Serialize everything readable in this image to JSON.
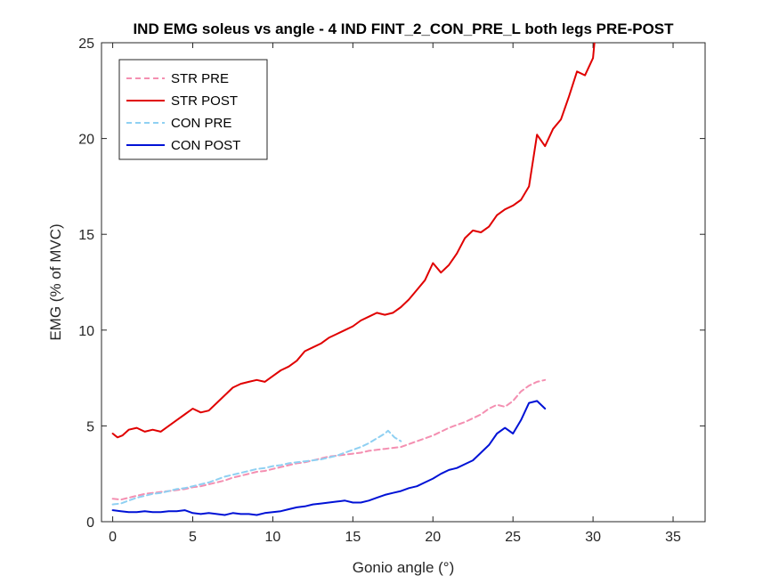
{
  "chart_data": {
    "type": "line",
    "title": "IND EMG soleus vs angle - 4 IND FINT_2_CON_PRE_L both legs PRE-POST",
    "xlabel": "Gonio angle (°)",
    "ylabel": "EMG (% of MVC)",
    "xlim": [
      -0.7,
      37
    ],
    "ylim": [
      0,
      25
    ],
    "xticks": [
      0,
      5,
      10,
      15,
      20,
      25,
      30,
      35
    ],
    "yticks": [
      0,
      5,
      10,
      15,
      20,
      25
    ],
    "grid": false,
    "legend_position": "top-left",
    "series": [
      {
        "name": "STR PRE",
        "color": "#F48FB1",
        "style": "dashed",
        "x": [
          0,
          0.5,
          1,
          1.5,
          2,
          2.5,
          3,
          3.5,
          4,
          4.5,
          5,
          5.5,
          6,
          6.5,
          7,
          7.5,
          8,
          8.5,
          9,
          9.5,
          10,
          10.5,
          11,
          11.5,
          12,
          12.5,
          13,
          13.5,
          14,
          14.5,
          15,
          15.5,
          16,
          16.5,
          17,
          17.5,
          18,
          18.5,
          19,
          19.5,
          20,
          20.5,
          21,
          21.5,
          22,
          22.5,
          23,
          23.5,
          24,
          24.5,
          25,
          25.5,
          26,
          26.5,
          27
        ],
        "values": [
          1.2,
          1.15,
          1.25,
          1.35,
          1.45,
          1.5,
          1.55,
          1.6,
          1.65,
          1.7,
          1.8,
          1.85,
          1.95,
          2.05,
          2.15,
          2.3,
          2.4,
          2.5,
          2.6,
          2.65,
          2.75,
          2.85,
          2.95,
          3.05,
          3.1,
          3.2,
          3.3,
          3.4,
          3.45,
          3.5,
          3.55,
          3.6,
          3.7,
          3.75,
          3.8,
          3.85,
          3.9,
          4.05,
          4.2,
          4.35,
          4.5,
          4.7,
          4.9,
          5.05,
          5.2,
          5.4,
          5.6,
          5.9,
          6.1,
          6.0,
          6.3,
          6.8,
          7.1,
          7.3,
          7.4
        ]
      },
      {
        "name": "STR POST",
        "color": "#E00000",
        "style": "solid",
        "x": [
          0,
          0.3,
          0.6,
          1,
          1.5,
          2,
          2.5,
          3,
          3.5,
          4,
          4.5,
          5,
          5.5,
          6,
          6.5,
          7,
          7.5,
          8,
          8.5,
          9,
          9.5,
          10,
          10.5,
          11,
          11.5,
          12,
          12.5,
          13,
          13.5,
          14,
          14.5,
          15,
          15.5,
          16,
          16.5,
          17,
          17.5,
          18,
          18.5,
          19,
          19.5,
          20,
          20.5,
          21,
          21.5,
          22,
          22.5,
          23,
          23.5,
          24,
          24.5,
          25,
          25.5,
          26,
          26.5,
          27,
          27.5,
          28,
          28.5,
          29,
          29.5,
          30,
          30.1
        ],
        "values": [
          4.6,
          4.4,
          4.5,
          4.8,
          4.9,
          4.7,
          4.8,
          4.7,
          5.0,
          5.3,
          5.6,
          5.9,
          5.7,
          5.8,
          6.2,
          6.6,
          7.0,
          7.2,
          7.3,
          7.4,
          7.3,
          7.6,
          7.9,
          8.1,
          8.4,
          8.9,
          9.1,
          9.3,
          9.6,
          9.8,
          10.0,
          10.2,
          10.5,
          10.7,
          10.9,
          10.8,
          10.9,
          11.2,
          11.6,
          12.1,
          12.6,
          13.5,
          13.0,
          13.4,
          14.0,
          14.8,
          15.2,
          15.1,
          15.4,
          16.0,
          16.3,
          16.5,
          16.8,
          17.5,
          20.2,
          19.6,
          20.5,
          21.0,
          22.2,
          23.5,
          23.3,
          24.2,
          25.1
        ]
      },
      {
        "name": "CON PRE",
        "color": "#8FD0F2",
        "style": "dashed",
        "x": [
          0,
          0.5,
          1,
          1.5,
          2,
          2.5,
          3,
          3.5,
          4,
          4.5,
          5,
          5.5,
          6,
          6.5,
          7,
          7.5,
          8,
          8.5,
          9,
          9.5,
          10,
          10.5,
          11,
          11.5,
          12,
          12.5,
          13,
          13.5,
          14,
          14.5,
          15,
          15.5,
          16,
          16.5,
          17,
          17.2,
          17.6,
          18
        ],
        "values": [
          0.9,
          0.95,
          1.1,
          1.25,
          1.35,
          1.45,
          1.5,
          1.6,
          1.7,
          1.75,
          1.85,
          1.95,
          2.05,
          2.2,
          2.35,
          2.45,
          2.55,
          2.65,
          2.75,
          2.8,
          2.9,
          2.95,
          3.05,
          3.1,
          3.15,
          3.2,
          3.25,
          3.35,
          3.45,
          3.6,
          3.75,
          3.9,
          4.1,
          4.35,
          4.6,
          4.75,
          4.4,
          4.2
        ]
      },
      {
        "name": "CON POST",
        "color": "#0012D6",
        "style": "solid",
        "x": [
          0,
          0.5,
          1,
          1.5,
          2,
          2.5,
          3,
          3.5,
          4,
          4.5,
          5,
          5.5,
          6,
          6.5,
          7,
          7.5,
          8,
          8.5,
          9,
          9.5,
          10,
          10.5,
          11,
          11.5,
          12,
          12.5,
          13,
          13.5,
          14,
          14.5,
          15,
          15.5,
          16,
          16.5,
          17,
          17.5,
          18,
          18.5,
          19,
          19.5,
          20,
          20.5,
          21,
          21.5,
          22,
          22.5,
          23,
          23.5,
          24,
          24.5,
          25,
          25.5,
          26,
          26.5,
          27
        ],
        "values": [
          0.6,
          0.55,
          0.5,
          0.5,
          0.55,
          0.5,
          0.5,
          0.55,
          0.55,
          0.6,
          0.45,
          0.4,
          0.45,
          0.4,
          0.35,
          0.45,
          0.4,
          0.4,
          0.35,
          0.45,
          0.5,
          0.55,
          0.65,
          0.75,
          0.8,
          0.9,
          0.95,
          1.0,
          1.05,
          1.1,
          1.0,
          1.0,
          1.1,
          1.25,
          1.4,
          1.5,
          1.6,
          1.75,
          1.85,
          2.05,
          2.25,
          2.5,
          2.7,
          2.8,
          3.0,
          3.2,
          3.6,
          4.0,
          4.6,
          4.9,
          4.6,
          5.3,
          6.2,
          6.3,
          5.9
        ]
      }
    ]
  }
}
